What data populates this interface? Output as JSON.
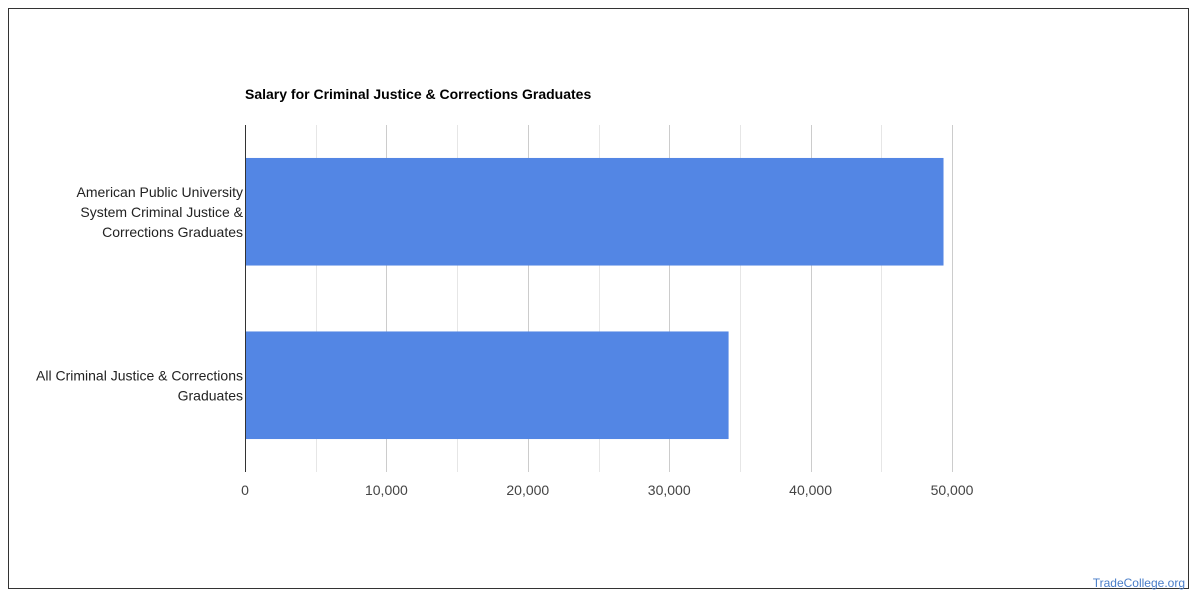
{
  "chart_data": {
    "type": "bar",
    "orientation": "horizontal",
    "title": "Salary for Criminal Justice & Corrections Graduates",
    "categories": [
      [
        "American Public University",
        "System Criminal Justice &",
        "Corrections Graduates"
      ],
      [
        "All Criminal Justice & Corrections",
        "Graduates"
      ]
    ],
    "values": [
      49400,
      34200
    ],
    "xlim": [
      0,
      50000
    ],
    "xticks": [
      0,
      10000,
      20000,
      30000,
      40000,
      50000
    ],
    "xtick_labels": [
      "0",
      "10,000",
      "20,000",
      "30,000",
      "40,000",
      "50,000"
    ],
    "grid": true,
    "bar_color": "#5386e4",
    "gridline_color": "#cccccc",
    "legend": "none"
  },
  "watermark": "TradeCollege.org"
}
